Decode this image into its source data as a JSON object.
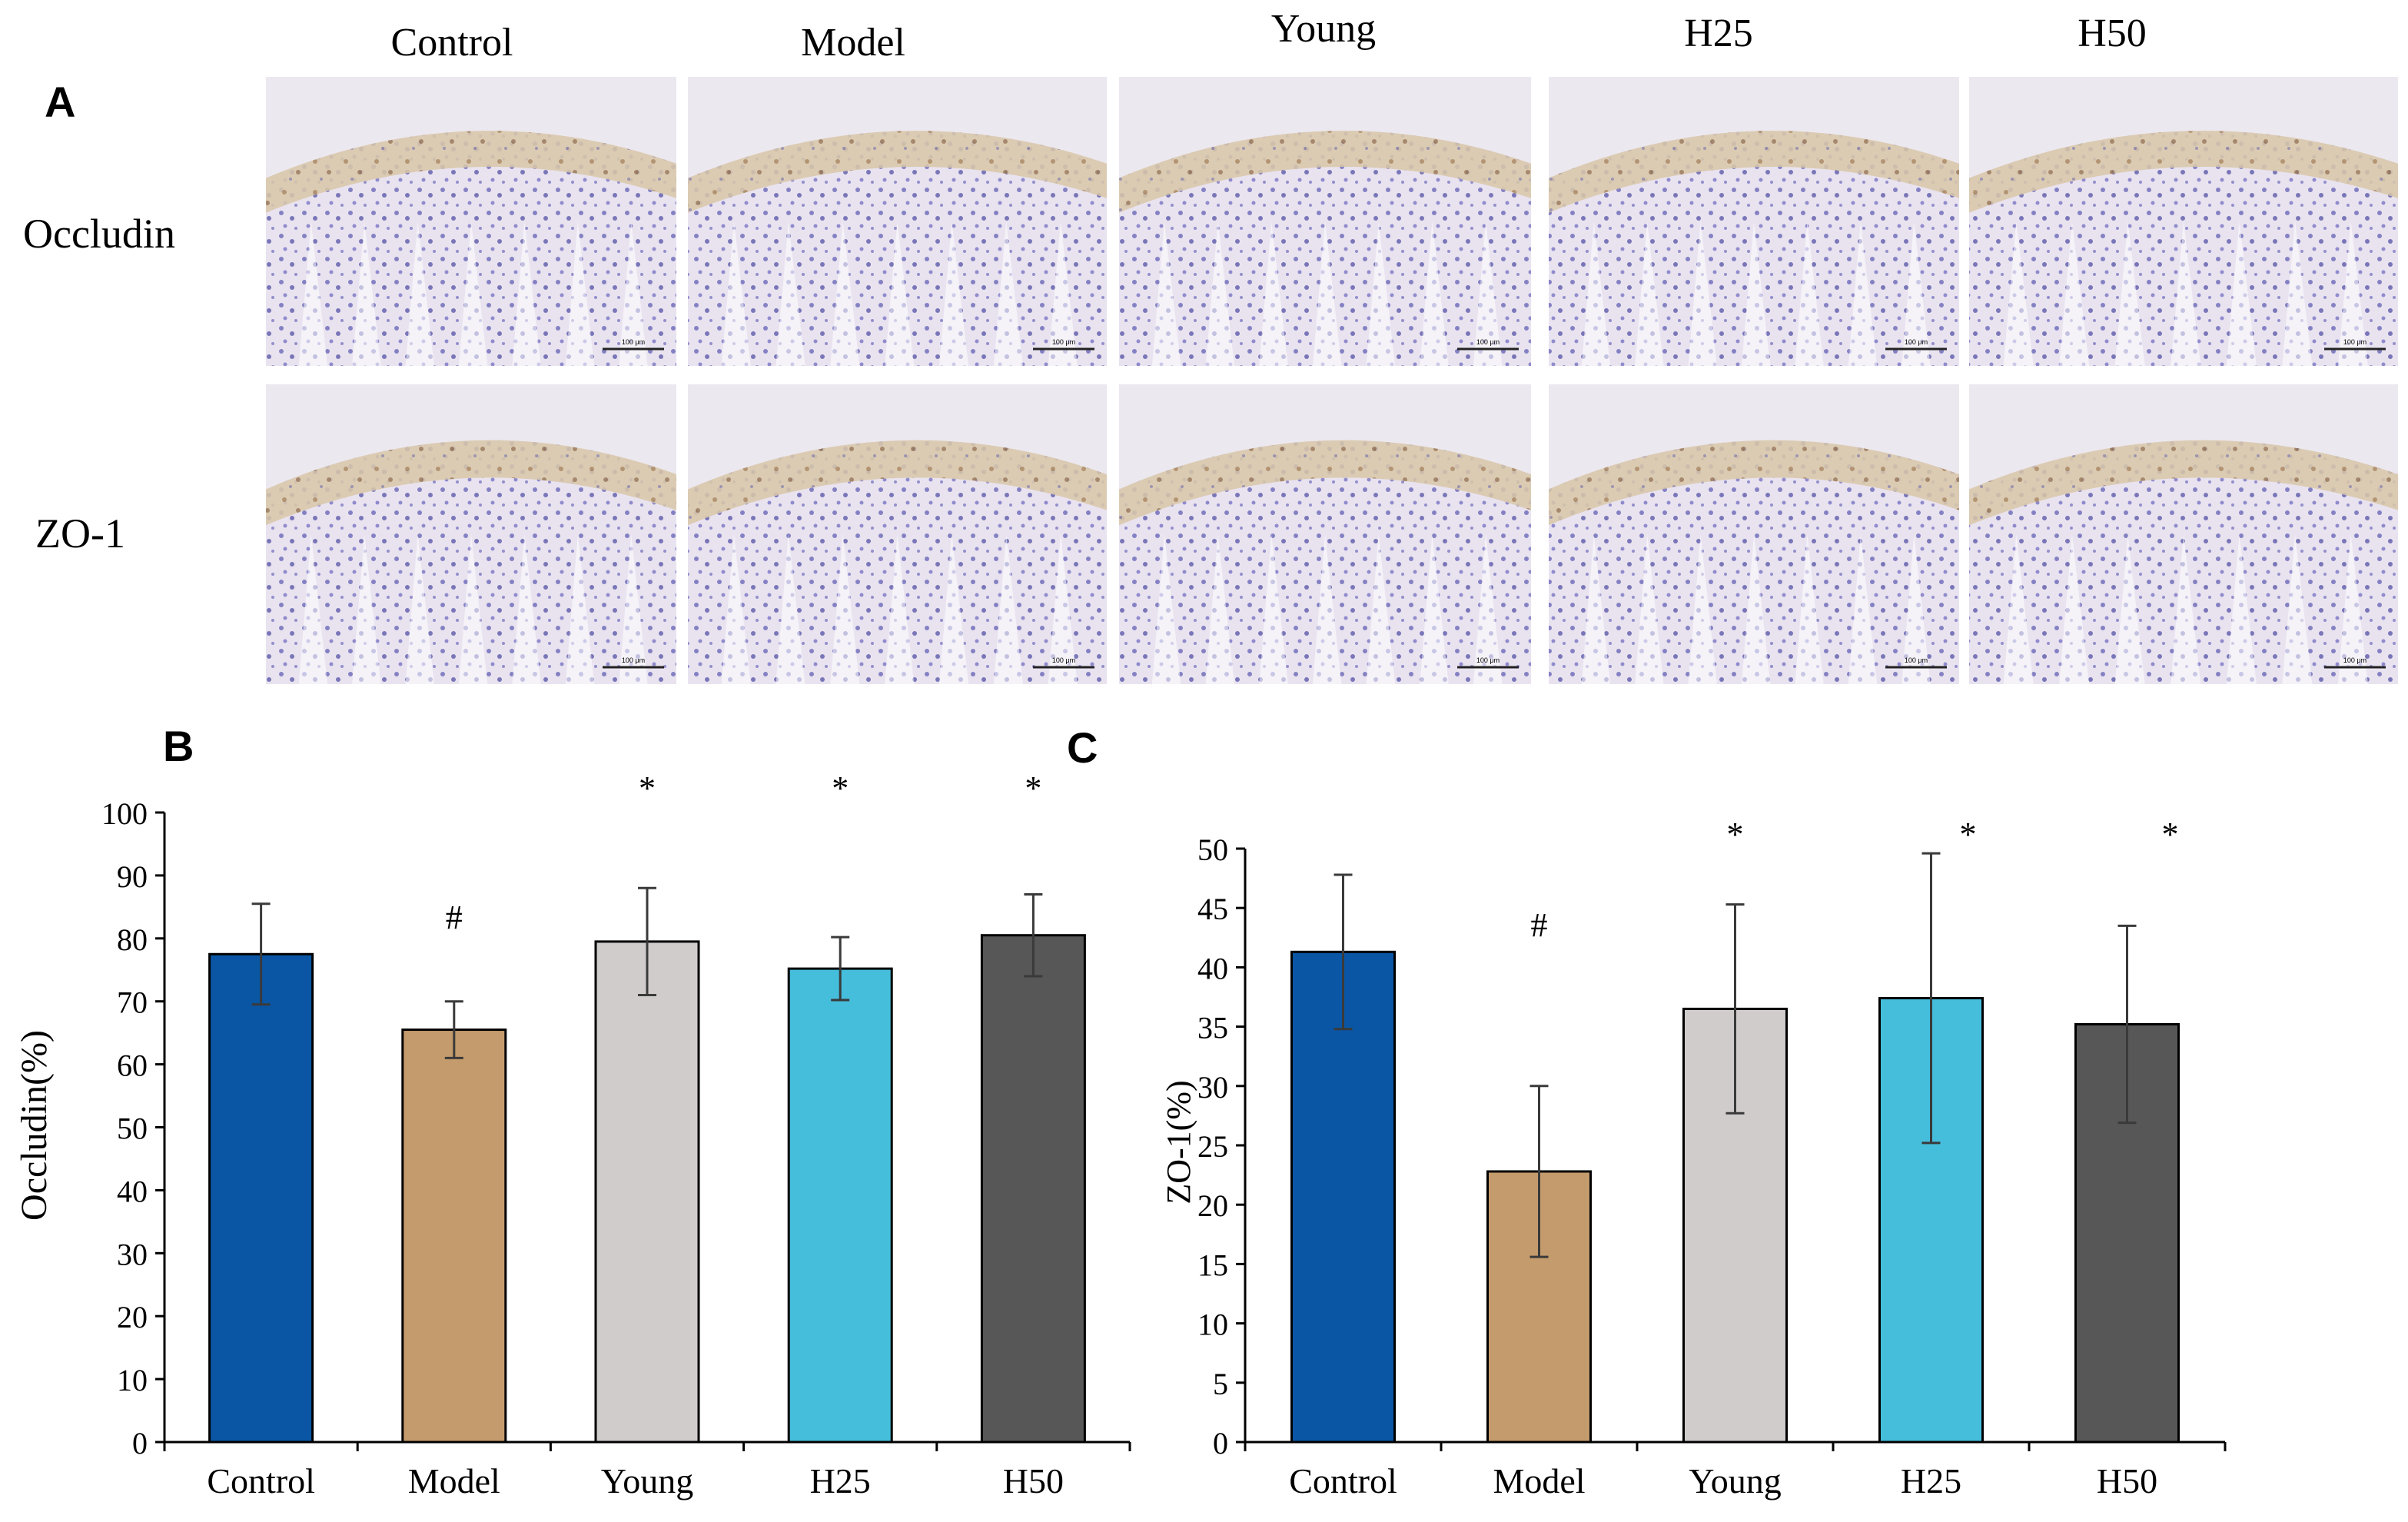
{
  "panel_a": {
    "label": "A",
    "column_headers": [
      "Control",
      "Model",
      "Young",
      "H25",
      "H50"
    ],
    "row_labels": [
      "Occludin",
      "ZO-1"
    ],
    "scale_bar_text": "100 μm"
  },
  "colors": {
    "Control": "#0a56a4",
    "Model": "#c49b6c",
    "Young": "#d1cccc",
    "H25": "#45bedb",
    "H50": "#575757"
  },
  "chart_data": [
    {
      "panel_label": "B",
      "type": "bar",
      "title": "",
      "xlabel": "",
      "ylabel": "Occludin(%)",
      "categories": [
        "Control",
        "Model",
        "Young",
        "H25",
        "H50"
      ],
      "values": [
        77.5,
        65.5,
        79.5,
        75.2,
        80.5
      ],
      "error": [
        8,
        4.5,
        8.5,
        5,
        6.5
      ],
      "markers": [
        "",
        "#",
        "*",
        "*",
        "*"
      ],
      "ylim": [
        0,
        100
      ],
      "yticks": [
        0,
        10,
        20,
        30,
        40,
        50,
        60,
        70,
        80,
        90,
        100
      ],
      "grid": false
    },
    {
      "panel_label": "C",
      "type": "bar",
      "title": "",
      "xlabel": "",
      "ylabel": "ZO-1(%)",
      "categories": [
        "Control",
        "Model",
        "Young",
        "H25",
        "H50"
      ],
      "values": [
        41.3,
        22.8,
        36.5,
        37.4,
        35.2
      ],
      "error": [
        6.5,
        7.2,
        8.8,
        12.2,
        8.3
      ],
      "markers": [
        "",
        "#",
        "*",
        "*",
        "*"
      ],
      "ylim": [
        0,
        50
      ],
      "yticks": [
        0,
        5,
        10,
        15,
        20,
        25,
        30,
        35,
        40,
        45,
        50
      ],
      "grid": false
    }
  ]
}
